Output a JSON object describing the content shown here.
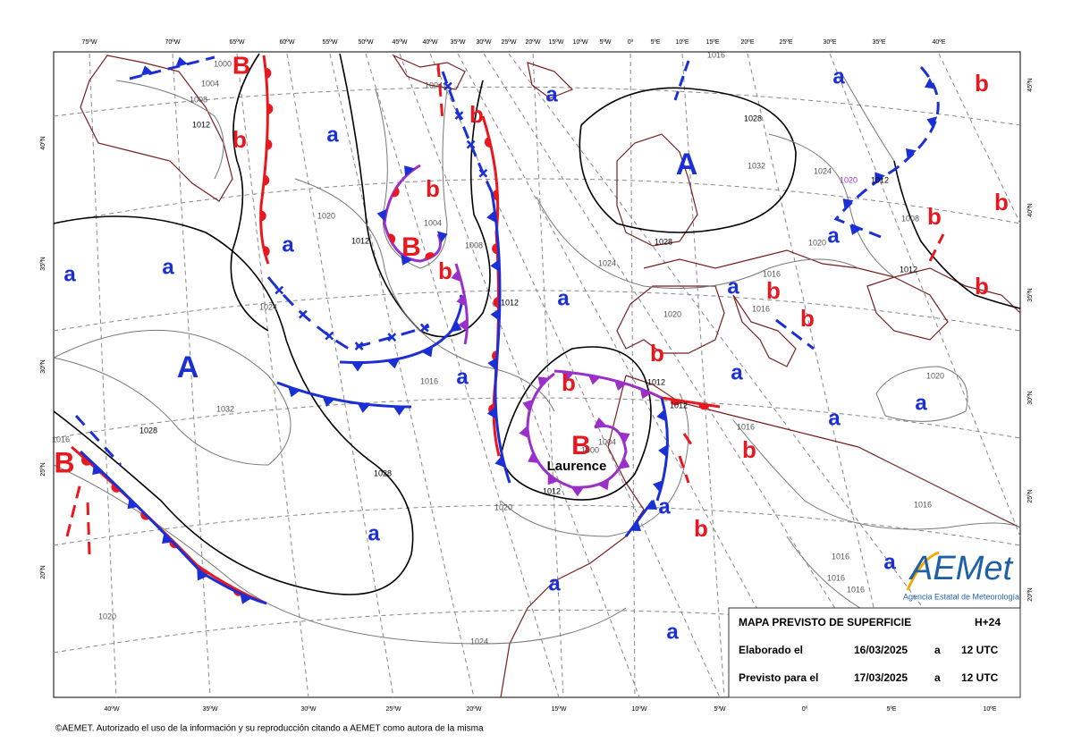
{
  "top_lon_labels": [
    "75ºW",
    "70ºW",
    "65ºW",
    "60ºW",
    "55ºW",
    "50ºW",
    "45ºW",
    "40ºW",
    "35ºW",
    "30ºW",
    "25ºW",
    "20ºW",
    "15ºW",
    "10ºW",
    "5ºW",
    "0º",
    "5ºE",
    "10ºE",
    "15ºE",
    "20ºE",
    "25ºE",
    "30ºE",
    "35ºE",
    "40ºE"
  ],
  "bottom_lon_labels": [
    "40ºW",
    "35ºW",
    "30ºW",
    "25ºW",
    "20ºW",
    "15ºW",
    "10ºW",
    "5ºW",
    "0º",
    "5ºE",
    "10ºE"
  ],
  "left_lat_labels": [
    "40ºN",
    "35ºN",
    "30ºN",
    "25ºN",
    "20ºN"
  ],
  "right_lat_labels": [
    "45ºN",
    "40ºN",
    "35ºN",
    "30ºN",
    "25ºN",
    "20ºN"
  ],
  "pressure_centers": [
    "B",
    "b",
    "a",
    "a",
    "a",
    "a",
    "A",
    "b",
    "B",
    "b",
    "b",
    "a",
    "A",
    "a",
    "b",
    "b",
    "b",
    "a",
    "a",
    "a",
    "b",
    "b",
    "b",
    "b",
    "a",
    "a",
    "b",
    "a",
    "a",
    "B",
    "b",
    "a",
    "b",
    "a",
    "a",
    "a",
    "B",
    "a"
  ],
  "isobar_labels": [
    "1000",
    "1004",
    "1008",
    "1012",
    "1020",
    "1012",
    "1004",
    "1008",
    "1024",
    "1016",
    "1012",
    "1032",
    "1028",
    "1028",
    "1020",
    "1012",
    "1024",
    "1020",
    "1016",
    "1024",
    "1020",
    "1028",
    "1028",
    "1032",
    "1024",
    "1020",
    "1012",
    "1008",
    "1012",
    "1020",
    "1016",
    "1016",
    "1012",
    "1012",
    "1016",
    "1020",
    "1016",
    "1016",
    "1016",
    "1016",
    "1004",
    "1016",
    "1004",
    "1000"
  ],
  "storm_name": "Laurence",
  "info_box": {
    "title": "MAPA PREVISTO DE SUPERFICIE",
    "lead_time": "H+24",
    "rows": [
      [
        "Elaborado el",
        "16/03/2025",
        "a",
        "12 UTC"
      ],
      [
        "Previsto para el",
        "17/03/2025",
        "a",
        "12 UTC"
      ]
    ]
  },
  "logo": {
    "name": "AEMet",
    "subtitle": "Agencia Estatal de Meteorología"
  },
  "copyright": "©AEMET. Autorizado el uso de la información y su reproducción citando a AEMET como autora de la misma"
}
